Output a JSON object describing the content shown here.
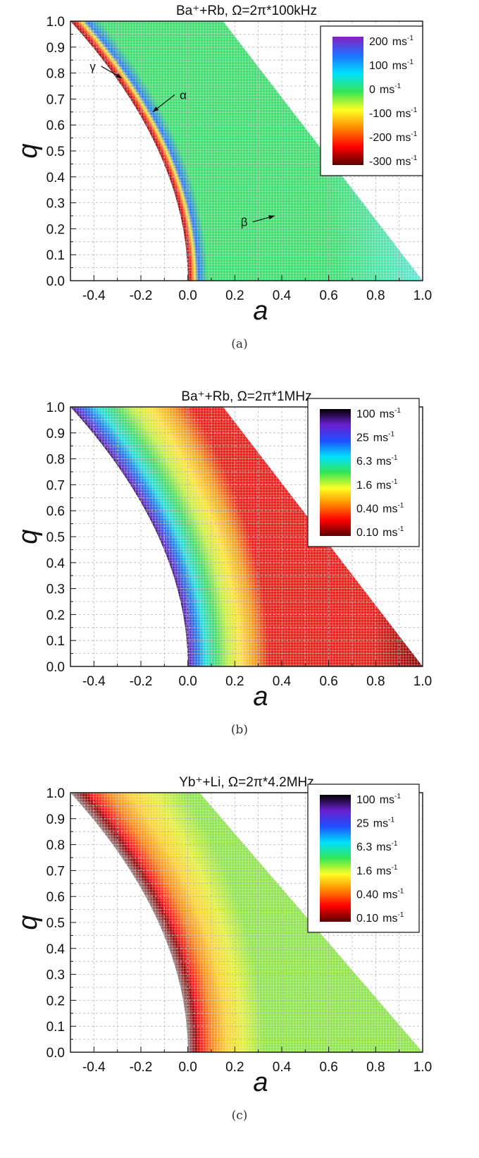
{
  "chart_data": [
    {
      "type": "heatmap",
      "panel_label": "(a)",
      "title": "Ba⁺+Rb, Ω=2π*100kHz",
      "xlabel": "a",
      "ylabel": "q",
      "xlim": [
        -0.5,
        1.0
      ],
      "ylim": [
        0.0,
        1.0
      ],
      "x_ticks": [
        "-0.4",
        "-0.2",
        "0.0",
        "0.2",
        "0.4",
        "0.6",
        "0.8",
        "1.0"
      ],
      "y_ticks": [
        "0.0",
        "0.1",
        "0.2",
        "0.3",
        "0.4",
        "0.5",
        "0.6",
        "0.7",
        "0.8",
        "0.9",
        "1.0"
      ],
      "grid": true,
      "legend_position": "top-right",
      "colorscale": "linear",
      "colorbar": [
        {
          "value": "200",
          "unit": "ms",
          "sup": "-1"
        },
        {
          "value": "100",
          "unit": "ms",
          "sup": "-1"
        },
        {
          "value": "0",
          "unit": "ms",
          "sup": "-1"
        },
        {
          "value": "-100",
          "unit": "ms",
          "sup": "-1"
        },
        {
          "value": "-200",
          "unit": "ms",
          "sup": "-1"
        },
        {
          "value": "-300",
          "unit": "ms",
          "sup": "-1"
        }
      ],
      "colorbar_colors": [
        "#8a1fbf",
        "#1f6fff",
        "#00e0ff",
        "#33e655",
        "#ffff22",
        "#ff8800",
        "#ff0000",
        "#5a0000"
      ],
      "region_colors": [
        {
          "band": "boundary",
          "color": "#5a1010"
        },
        {
          "band": "near-boundary",
          "color": "#2a78ff"
        },
        {
          "band": "interior",
          "color": "#3fe070"
        },
        {
          "band": "interior-right",
          "color": "#5ee8d8"
        }
      ],
      "annotations": [
        {
          "text": "γ",
          "x": -0.405,
          "y": 0.81,
          "arrow_to": [
            -0.28,
            0.78
          ]
        },
        {
          "text": "α",
          "x": -0.02,
          "y": 0.7,
          "arrow_to": [
            -0.15,
            0.65
          ]
        },
        {
          "text": "β",
          "x": 0.24,
          "y": 0.21,
          "arrow_to": [
            0.37,
            0.25
          ]
        }
      ]
    },
    {
      "type": "heatmap",
      "panel_label": "(b)",
      "title": "Ba⁺+Rb, Ω=2π*1MHz",
      "xlabel": "a",
      "ylabel": "q",
      "xlim": [
        -0.5,
        1.0
      ],
      "ylim": [
        0.0,
        1.0
      ],
      "x_ticks": [
        "-0.4",
        "-0.2",
        "0.0",
        "0.2",
        "0.4",
        "0.6",
        "0.8",
        "1.0"
      ],
      "y_ticks": [
        "0.0",
        "0.1",
        "0.2",
        "0.3",
        "0.4",
        "0.5",
        "0.6",
        "0.7",
        "0.8",
        "0.9",
        "1.0"
      ],
      "grid": true,
      "legend_position": "top-right",
      "colorscale": "log",
      "colorbar": [
        {
          "value": "100",
          "unit": "ms",
          "sup": "-1"
        },
        {
          "value": "25",
          "unit": "ms",
          "sup": "-1"
        },
        {
          "value": "6.3",
          "unit": "ms",
          "sup": "-1"
        },
        {
          "value": "1.6",
          "unit": "ms",
          "sup": "-1"
        },
        {
          "value": "0.40",
          "unit": "ms",
          "sup": "-1"
        },
        {
          "value": "0.10",
          "unit": "ms",
          "sup": "-1"
        }
      ],
      "colorbar_colors": [
        "#000000",
        "#6a1fcf",
        "#1f4fff",
        "#00e0ff",
        "#33e655",
        "#ffff22",
        "#ff8800",
        "#ff0000",
        "#5a0000"
      ],
      "region_colors": [
        {
          "band": "boundary",
          "color": "#111111"
        },
        {
          "band": "b1",
          "color": "#6a2fd0"
        },
        {
          "band": "b2",
          "color": "#1f7fff"
        },
        {
          "band": "b3",
          "color": "#22e0e0"
        },
        {
          "band": "b4",
          "color": "#44e066"
        },
        {
          "band": "b5",
          "color": "#c8f040"
        },
        {
          "band": "b6",
          "color": "#ffe430"
        },
        {
          "band": "b7",
          "color": "#ff9a1a"
        },
        {
          "band": "interior",
          "color": "#ff1a1a"
        },
        {
          "band": "corner",
          "color": "#8a0a0a"
        }
      ]
    },
    {
      "type": "heatmap",
      "panel_label": "(c)",
      "title": "Yb⁺+Li, Ω=2π*4.2MHz",
      "xlabel": "a",
      "ylabel": "q",
      "xlim": [
        -0.5,
        1.0
      ],
      "ylim": [
        0.0,
        1.0
      ],
      "x_ticks": [
        "-0.4",
        "-0.2",
        "0.0",
        "0.2",
        "0.4",
        "0.6",
        "0.8",
        "1.0"
      ],
      "y_ticks": [
        "0.0",
        "0.1",
        "0.2",
        "0.3",
        "0.4",
        "0.5",
        "0.6",
        "0.7",
        "0.8",
        "0.9",
        "1.0"
      ],
      "grid": true,
      "legend_position": "top-right",
      "colorscale": "log",
      "colorbar": [
        {
          "value": "100",
          "unit": "ms",
          "sup": "-1"
        },
        {
          "value": "25",
          "unit": "ms",
          "sup": "-1"
        },
        {
          "value": "6.3",
          "unit": "ms",
          "sup": "-1"
        },
        {
          "value": "1.6",
          "unit": "ms",
          "sup": "-1"
        },
        {
          "value": "0.40",
          "unit": "ms",
          "sup": "-1"
        },
        {
          "value": "0.10",
          "unit": "ms",
          "sup": "-1"
        }
      ],
      "colorbar_colors": [
        "#000000",
        "#6a1fcf",
        "#1f4fff",
        "#00e0ff",
        "#33e655",
        "#ffff22",
        "#ff8800",
        "#ff0000",
        "#5a0000"
      ],
      "region_colors": [
        {
          "band": "boundary",
          "color": "#999999"
        },
        {
          "band": "b1",
          "color": "#a00a0a"
        },
        {
          "band": "b2",
          "color": "#ff1a1a"
        },
        {
          "band": "b3",
          "color": "#ff8a1a"
        },
        {
          "band": "b4",
          "color": "#ffd230"
        },
        {
          "band": "b5",
          "color": "#e4f03a"
        },
        {
          "band": "interior",
          "color": "#8ee84a"
        }
      ]
    }
  ]
}
